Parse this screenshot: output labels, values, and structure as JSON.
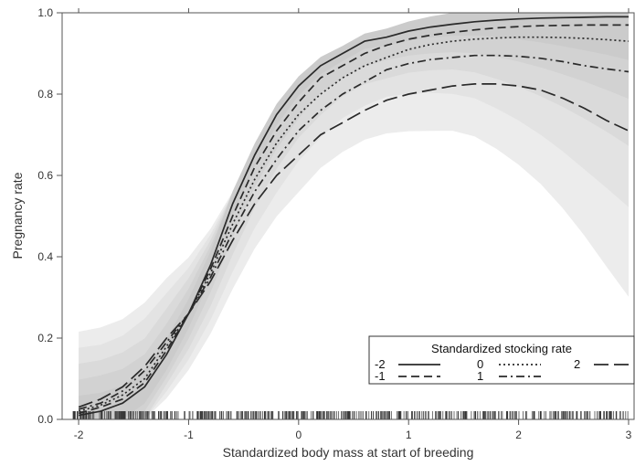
{
  "chart_data": {
    "type": "line",
    "xlabel": "Standardized body mass at start of breeding",
    "ylabel": "Pregnancy rate",
    "xlim": [
      -2.15,
      3.05
    ],
    "ylim": [
      0,
      1.0
    ],
    "x_ticks": [
      -2,
      -1,
      0,
      1,
      2,
      3
    ],
    "y_ticks": [
      0.0,
      0.2,
      0.4,
      0.6,
      0.8,
      1.0
    ],
    "x_tick_labels": [
      "-2",
      "-1",
      "0",
      "1",
      "2",
      "3"
    ],
    "y_tick_labels": [
      "0.0",
      "0.2",
      "0.4",
      "0.6",
      "0.8",
      "1.0"
    ],
    "legend": {
      "title": "Standardized stocking rate",
      "position": "bottom-right",
      "entries": [
        "-2",
        "-1",
        "0",
        "1",
        "2"
      ]
    },
    "x": [
      -2.0,
      -1.8,
      -1.6,
      -1.4,
      -1.2,
      -1.0,
      -0.8,
      -0.6,
      -0.4,
      -0.2,
      0.0,
      0.2,
      0.4,
      0.6,
      0.8,
      1.0,
      1.2,
      1.4,
      1.6,
      1.8,
      2.0,
      2.2,
      2.4,
      2.6,
      2.8,
      3.0
    ],
    "series": [
      {
        "name": "-2",
        "style": "solid",
        "values": [
          0.01,
          0.02,
          0.04,
          0.08,
          0.16,
          0.26,
          0.38,
          0.53,
          0.65,
          0.75,
          0.82,
          0.87,
          0.9,
          0.93,
          0.94,
          0.955,
          0.965,
          0.972,
          0.978,
          0.982,
          0.985,
          0.987,
          0.988,
          0.989,
          0.99,
          0.99
        ]
      },
      {
        "name": "-1",
        "style": "dashed",
        "values": [
          0.015,
          0.03,
          0.05,
          0.09,
          0.17,
          0.26,
          0.37,
          0.5,
          0.62,
          0.71,
          0.78,
          0.84,
          0.87,
          0.9,
          0.92,
          0.935,
          0.945,
          0.952,
          0.958,
          0.963,
          0.966,
          0.968,
          0.969,
          0.97,
          0.97,
          0.97
        ]
      },
      {
        "name": "0",
        "style": "dotted",
        "values": [
          0.02,
          0.035,
          0.06,
          0.1,
          0.18,
          0.26,
          0.36,
          0.48,
          0.59,
          0.68,
          0.75,
          0.8,
          0.84,
          0.87,
          0.89,
          0.91,
          0.922,
          0.93,
          0.935,
          0.938,
          0.94,
          0.94,
          0.939,
          0.937,
          0.934,
          0.93
        ]
      },
      {
        "name": "1",
        "style": "dashdot",
        "values": [
          0.025,
          0.04,
          0.07,
          0.12,
          0.19,
          0.26,
          0.35,
          0.46,
          0.56,
          0.64,
          0.71,
          0.76,
          0.8,
          0.83,
          0.86,
          0.875,
          0.885,
          0.89,
          0.895,
          0.895,
          0.893,
          0.888,
          0.88,
          0.87,
          0.862,
          0.855
        ]
      },
      {
        "name": "2",
        "style": "longdash",
        "values": [
          0.03,
          0.05,
          0.08,
          0.13,
          0.2,
          0.26,
          0.34,
          0.44,
          0.53,
          0.6,
          0.65,
          0.7,
          0.73,
          0.76,
          0.785,
          0.8,
          0.81,
          0.82,
          0.825,
          0.825,
          0.82,
          0.81,
          0.79,
          0.765,
          0.735,
          0.71
        ]
      }
    ],
    "grid": false
  }
}
